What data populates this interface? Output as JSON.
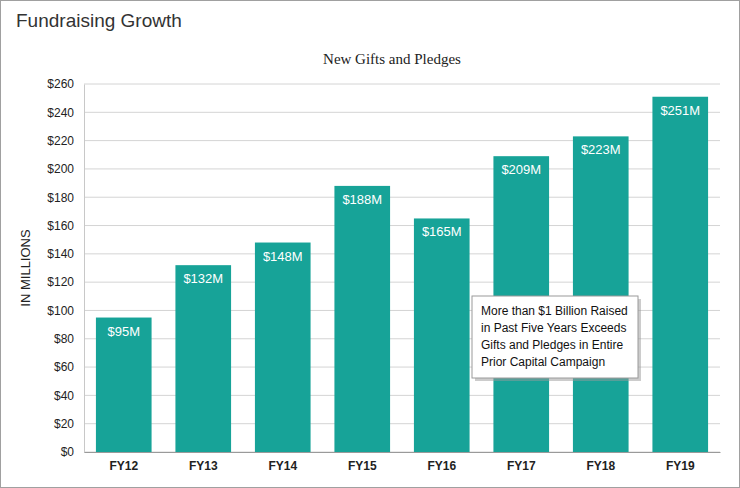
{
  "chart_data": {
    "type": "bar",
    "title": "Fundraising Growth",
    "subtitle": "New Gifts and Pledges",
    "y_label": "IN MILLIONS",
    "categories": [
      "FY12",
      "FY13",
      "FY14",
      "FY15",
      "FY16",
      "FY17",
      "FY18",
      "FY19"
    ],
    "values": [
      95,
      132,
      148,
      188,
      165,
      209,
      223,
      251
    ],
    "value_labels": [
      "$95M",
      "$132M",
      "$148M",
      "$188M",
      "$165M",
      "$209M",
      "$223M",
      "$251M"
    ],
    "color": "#17a398",
    "ylim": [
      0,
      260
    ],
    "yticks": [
      {
        "value": 0,
        "label": "$0"
      },
      {
        "value": 20,
        "label": "$20"
      },
      {
        "value": 40,
        "label": "$40"
      },
      {
        "value": 60,
        "label": "$60"
      },
      {
        "value": 80,
        "label": "$80"
      },
      {
        "value": 100,
        "label": "$100"
      },
      {
        "value": 120,
        "label": "$120"
      },
      {
        "value": 140,
        "label": "$140"
      },
      {
        "value": 160,
        "label": "$160"
      },
      {
        "value": 180,
        "label": "$180"
      },
      {
        "value": 200,
        "label": "$200"
      },
      {
        "value": 220,
        "label": "$220"
      },
      {
        "value": 240,
        "label": "$240"
      },
      {
        "value": 260,
        "label": "$260"
      }
    ],
    "grid": true,
    "data_labels": true,
    "annotation": [
      "More than $1 Billion Raised",
      "in Past Five Years Exceeds",
      "Gifts and Pledges in Entire",
      "Prior Capital Campaign"
    ]
  }
}
